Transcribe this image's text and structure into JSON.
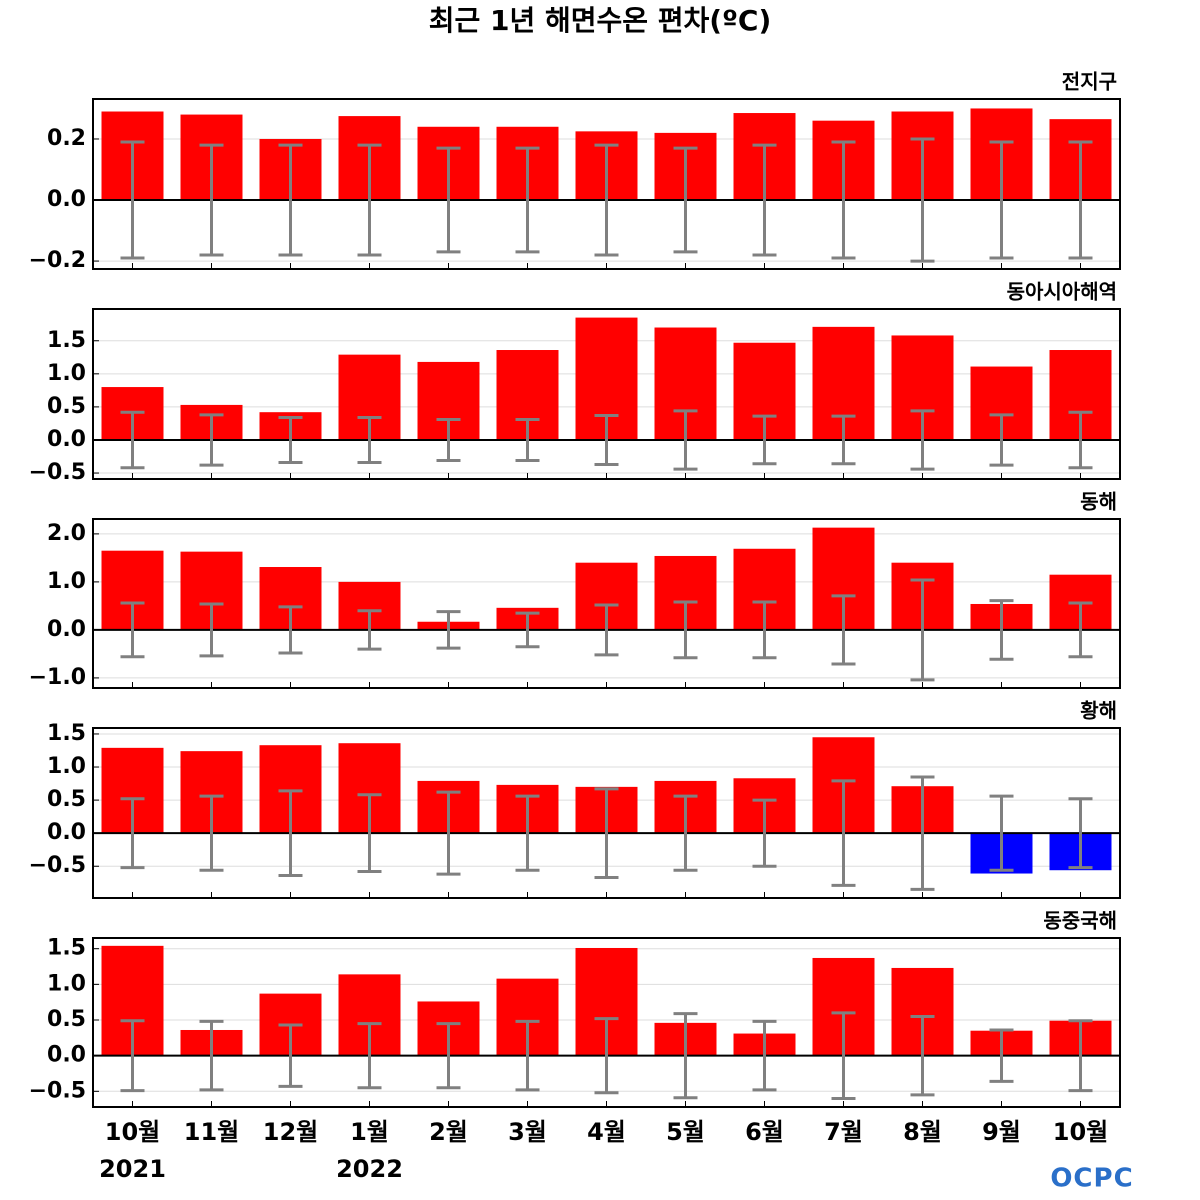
{
  "title": "최근 1년 해면수온 편차(ºC)",
  "logo": "OCPC",
  "chart_data": [
    {
      "type": "bar",
      "title": "전지구",
      "ylim": [
        -0.226,
        0.331
      ],
      "yticks": [
        {
          "value": -0.2,
          "label": "−0.2"
        },
        {
          "value": 0,
          "label": "0.0"
        },
        0.2
      ],
      "grid": true,
      "positive_color": "#ff0000",
      "negative_color": "#0000ff",
      "error_color": "#808080",
      "values": [
        0.29,
        0.28,
        0.2,
        0.275,
        0.24,
        0.24,
        0.225,
        0.22,
        0.285,
        0.26,
        0.29,
        0.3,
        0.265
      ],
      "errors": [
        0.19,
        0.18,
        0.18,
        0.18,
        0.17,
        0.17,
        0.18,
        0.17,
        0.18,
        0.19,
        0.2,
        0.19,
        0.19
      ]
    },
    {
      "type": "bar",
      "title": "동아시아해역",
      "ylim": [
        -0.59,
        1.98
      ],
      "yticks": [
        {
          "value": -0.5,
          "label": "−0.5"
        },
        {
          "value": 0,
          "label": "0.0"
        },
        0.5,
        {
          "value": 1,
          "label": "1.0"
        },
        1.5
      ],
      "grid": true,
      "positive_color": "#ff0000",
      "negative_color": "#0000ff",
      "error_color": "#808080",
      "values": [
        0.8,
        0.53,
        0.42,
        1.29,
        1.18,
        1.36,
        1.85,
        1.7,
        1.47,
        1.71,
        1.58,
        1.11,
        1.36
      ],
      "errors": [
        0.42,
        0.38,
        0.34,
        0.34,
        0.31,
        0.31,
        0.37,
        0.44,
        0.36,
        0.36,
        0.44,
        0.38,
        0.42
      ]
    },
    {
      "type": "bar",
      "title": "동해",
      "ylim": [
        -1.21,
        2.31
      ],
      "yticks": [
        {
          "value": -1,
          "label": "−1.0"
        },
        {
          "value": 0,
          "label": "0.0"
        },
        {
          "value": 1,
          "label": "1.0"
        },
        {
          "value": 2,
          "label": "2.0"
        }
      ],
      "grid": true,
      "positive_color": "#ff0000",
      "negative_color": "#0000ff",
      "error_color": "#808080",
      "values": [
        1.65,
        1.63,
        1.31,
        1.0,
        0.17,
        0.46,
        1.4,
        1.54,
        1.69,
        2.13,
        1.4,
        0.54,
        1.15
      ],
      "errors": [
        0.56,
        0.54,
        0.48,
        0.4,
        0.38,
        0.35,
        0.52,
        0.58,
        0.58,
        0.71,
        1.04,
        0.61,
        0.56
      ]
    },
    {
      "type": "bar",
      "title": "황해",
      "ylim": [
        -0.98,
        1.59
      ],
      "yticks": [
        {
          "value": -0.5,
          "label": "−0.5"
        },
        {
          "value": 0,
          "label": "0.0"
        },
        0.5,
        {
          "value": 1,
          "label": "1.0"
        },
        1.5
      ],
      "grid": true,
      "positive_color": "#ff0000",
      "negative_color": "#0000ff",
      "error_color": "#808080",
      "values": [
        1.29,
        1.24,
        1.33,
        1.36,
        0.79,
        0.73,
        0.7,
        0.79,
        0.83,
        1.45,
        0.71,
        -0.61,
        -0.56
      ],
      "errors": [
        0.52,
        0.56,
        0.64,
        0.58,
        0.62,
        0.56,
        0.67,
        0.56,
        0.5,
        0.79,
        0.85,
        0.56,
        0.52
      ]
    },
    {
      "type": "bar",
      "title": "동중국해",
      "ylim": [
        -0.72,
        1.65
      ],
      "yticks": [
        {
          "value": -0.5,
          "label": "−0.5"
        },
        {
          "value": 0,
          "label": "0.0"
        },
        0.5,
        {
          "value": 1,
          "label": "1.0"
        },
        1.5
      ],
      "grid": true,
      "positive_color": "#ff0000",
      "negative_color": "#0000ff",
      "error_color": "#808080",
      "values": [
        1.54,
        0.36,
        0.87,
        1.14,
        0.76,
        1.08,
        1.51,
        0.46,
        0.31,
        1.37,
        1.23,
        0.35,
        0.49
      ],
      "errors": [
        0.49,
        0.48,
        0.43,
        0.45,
        0.45,
        0.48,
        0.52,
        0.59,
        0.48,
        0.6,
        0.55,
        0.36,
        0.49
      ],
      "categories": [
        "10월",
        "11월",
        "12월",
        "1월",
        "2월",
        "3월",
        "4월",
        "5월",
        "6월",
        "7월",
        "8월",
        "9월",
        "10월"
      ],
      "category_years": [
        "2021",
        null,
        null,
        "2022",
        null,
        null,
        null,
        null,
        null,
        null,
        null,
        null,
        null
      ]
    }
  ]
}
